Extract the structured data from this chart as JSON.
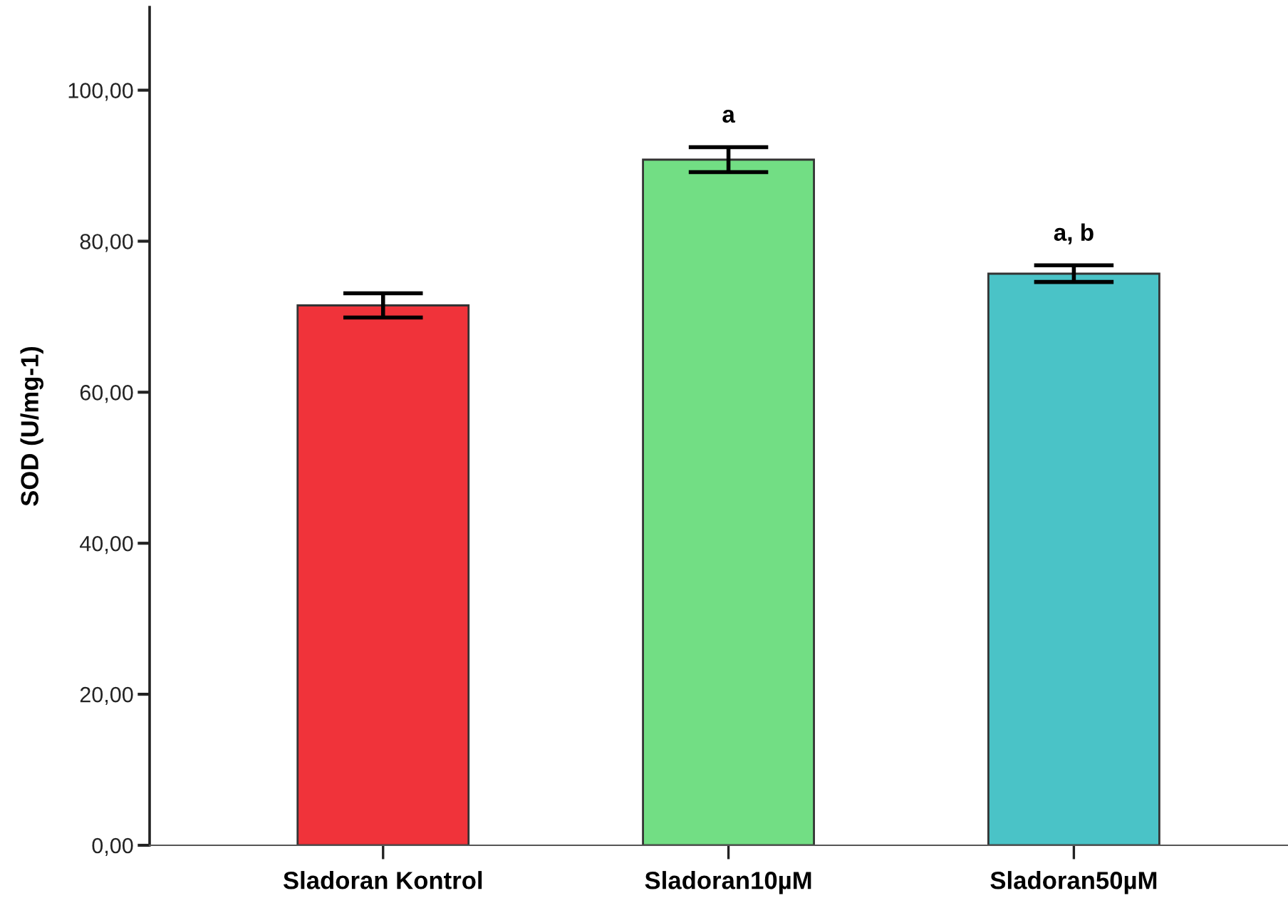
{
  "chart_data": {
    "type": "bar",
    "ylabel": "SOD (U/mg-1)",
    "categories": [
      "Sladoran Kontrol",
      "Sladoran10µM",
      "Sladoran50µM"
    ],
    "values": [
      71.5,
      90.8,
      75.7
    ],
    "errors": [
      1.6,
      1.65,
      1.1
    ],
    "colors": [
      "#f0333a",
      "#72de84",
      "#4ac3c7"
    ],
    "ylim": [
      0,
      111
    ],
    "yticks": [
      {
        "value": 0,
        "label": "0,00"
      },
      {
        "value": 20,
        "label": "20,00"
      },
      {
        "value": 40,
        "label": "40,00"
      },
      {
        "value": 60,
        "label": "60,00"
      },
      {
        "value": 80,
        "label": "80,00"
      },
      {
        "value": 100,
        "label": "100,00"
      }
    ],
    "annotations": [
      {
        "text": "a",
        "x": "Sladoran10µM",
        "y": 90.8
      },
      {
        "text": "a, b",
        "x": "Sladoran50µM",
        "y": 75.7
      }
    ],
    "grid": false,
    "legend": false
  }
}
